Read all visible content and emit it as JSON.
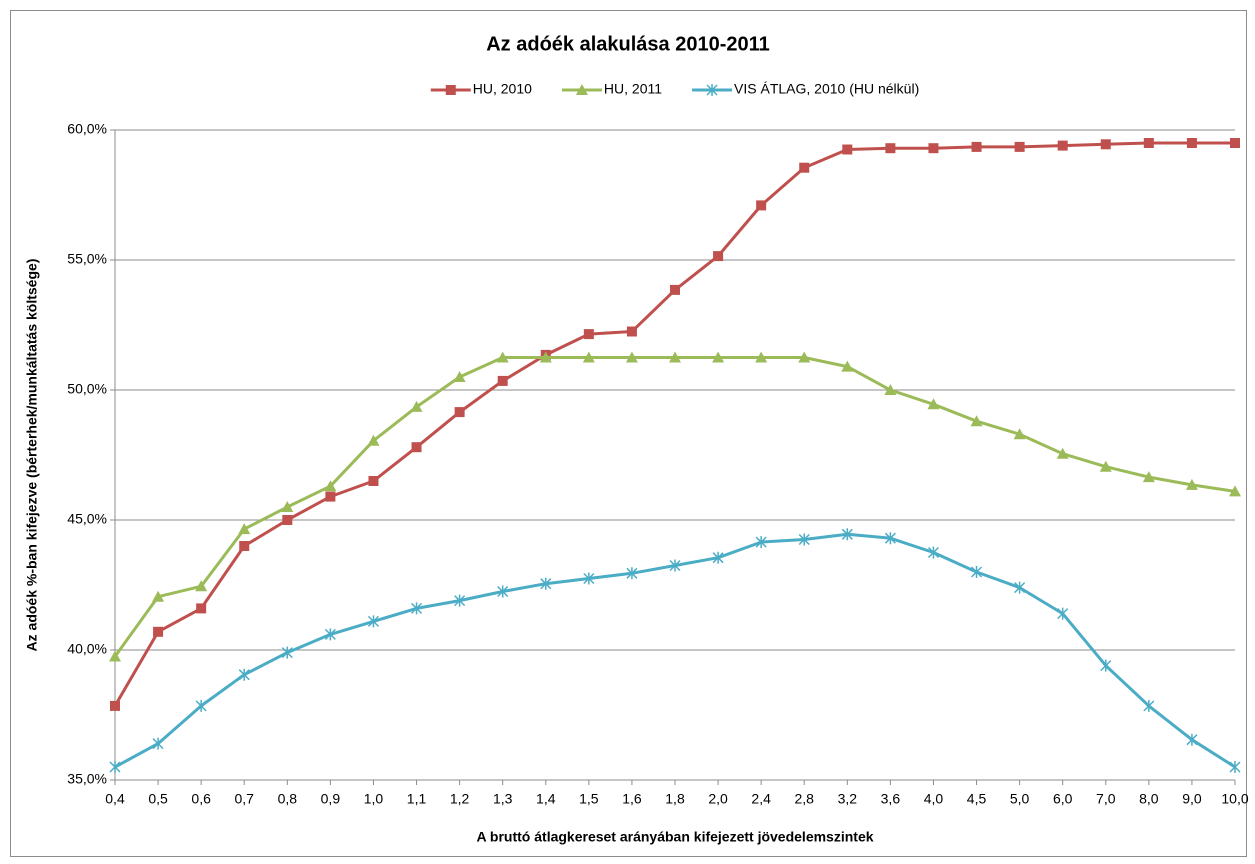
{
  "chart_data": {
    "type": "line",
    "title": "Az adóék alakulása 2010-2011",
    "x_label": "A bruttó átlagkereset arányában kifejezett jövedelemszintek",
    "y_label": "Az adóék %-ban kifejezve (bérterhek/munkáltatás költsége)",
    "categories": [
      "0,4",
      "0,5",
      "0,6",
      "0,7",
      "0,8",
      "0,9",
      "1,0",
      "1,1",
      "1,2",
      "1,3",
      "1,4",
      "1,5",
      "1,6",
      "1,8",
      "2,0",
      "2,4",
      "2,8",
      "3,2",
      "3,6",
      "4,0",
      "4,5",
      "5,0",
      "6,0",
      "7,0",
      "8,0",
      "9,0",
      "10,0"
    ],
    "series": [
      {
        "name": "HU, 2010",
        "color": "#c0504d",
        "marker": "square",
        "values": [
          37.85,
          40.7,
          41.6,
          44.0,
          45.0,
          45.9,
          46.5,
          47.8,
          49.15,
          50.35,
          51.35,
          52.15,
          52.25,
          53.85,
          55.15,
          57.1,
          58.55,
          59.25,
          59.3,
          59.3,
          59.35,
          59.35,
          59.4,
          59.45,
          59.5,
          59.5,
          59.5
        ]
      },
      {
        "name": "HU, 2011",
        "color": "#9bbb59",
        "marker": "triangle",
        "values": [
          39.75,
          42.05,
          42.45,
          44.65,
          45.5,
          46.3,
          48.05,
          49.35,
          50.5,
          51.25,
          51.25,
          51.25,
          51.25,
          51.25,
          51.25,
          51.25,
          51.25,
          50.9,
          50.0,
          49.45,
          48.8,
          48.3,
          47.55,
          47.05,
          46.65,
          46.35,
          46.1
        ]
      },
      {
        "name": "VIS ÁTLAG, 2010 (HU nélkül)",
        "color": "#4bacc6",
        "marker": "star",
        "values": [
          35.5,
          36.4,
          37.85,
          39.05,
          39.9,
          40.6,
          41.1,
          41.6,
          41.9,
          42.25,
          42.55,
          42.75,
          42.95,
          43.25,
          43.55,
          44.15,
          44.25,
          44.45,
          44.3,
          43.75,
          43.0,
          42.4,
          41.4,
          39.4,
          37.85,
          36.55,
          35.5
        ]
      }
    ],
    "ylim": [
      35,
      60
    ],
    "yticks": [
      {
        "value": 35,
        "label": "35,0%"
      },
      {
        "value": 40,
        "label": "40,0%"
      },
      {
        "value": 45,
        "label": "45,0%"
      },
      {
        "value": 50,
        "label": "50,0%"
      },
      {
        "value": 55,
        "label": "55,0%"
      },
      {
        "value": 60,
        "label": "60,0%"
      }
    ],
    "grid": true,
    "legend": "top"
  }
}
